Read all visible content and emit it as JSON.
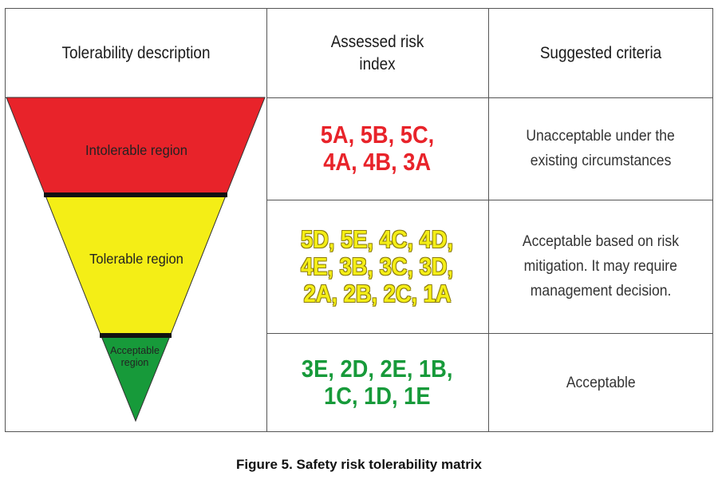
{
  "headers": {
    "tolerability": "Tolerability description",
    "risk_index_line1": "Assessed risk",
    "risk_index_line2": "index",
    "criteria": "Suggested criteria"
  },
  "regions": {
    "intolerable": {
      "label": "Intolerable region",
      "color": "#e8232a"
    },
    "tolerable": {
      "label": "Tolerable region",
      "color": "#f4ee16"
    },
    "acceptable": {
      "label_line1": "Acceptable",
      "label_line2": "region",
      "color": "#179a3a"
    }
  },
  "rows": [
    {
      "index_lines": [
        "5A, 5B, 5C,",
        "4A, 4B, 3A"
      ],
      "criteria_lines": [
        "Unacceptable under the",
        "existing circumstances"
      ]
    },
    {
      "index_lines": [
        "5D, 5E, 4C, 4D,",
        "4E, 3B, 3C, 3D,",
        "2A, 2B, 2C, 1A"
      ],
      "criteria_lines": [
        "Acceptable based on risk",
        "mitigation. It may require",
        "management decision."
      ]
    },
    {
      "index_lines": [
        "3E, 2D, 2E, 1B,",
        "1C, 1D, 1E"
      ],
      "criteria_lines": [
        "Acceptable"
      ]
    }
  ],
  "caption": "Figure 5. Safety risk tolerability matrix"
}
